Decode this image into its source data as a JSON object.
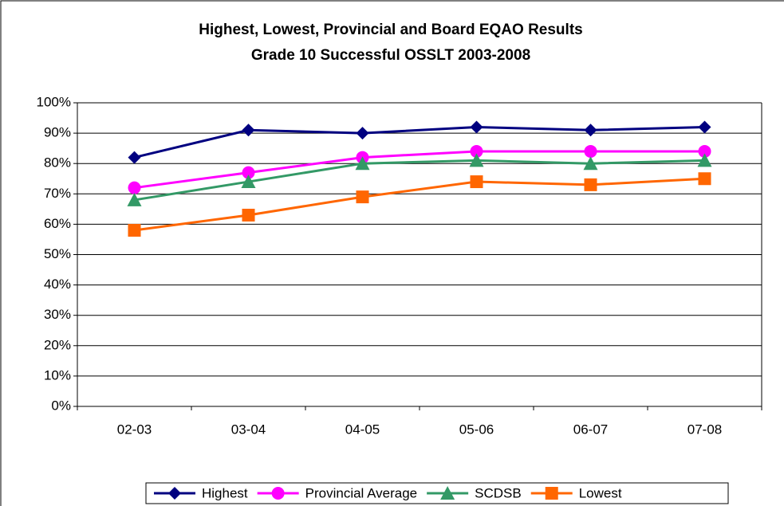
{
  "chart_data": {
    "type": "line",
    "title": "Highest, Lowest, Provincial and Board EQAO Results",
    "subtitle": "Grade 10 Successful OSSLT 2003-2008",
    "categories": [
      "02-03",
      "03-04",
      "04-05",
      "05-06",
      "06-07",
      "07-08"
    ],
    "series": [
      {
        "name": "Highest",
        "color": "#000080",
        "marker": "diamond",
        "values": [
          82,
          91,
          90,
          92,
          91,
          92
        ]
      },
      {
        "name": "Provincial Average",
        "color": "#ff00ff",
        "marker": "circle",
        "values": [
          72,
          77,
          82,
          84,
          84,
          84
        ]
      },
      {
        "name": "SCDSB",
        "color": "#339966",
        "marker": "triangle",
        "values": [
          68,
          74,
          80,
          81,
          80,
          81
        ]
      },
      {
        "name": "Lowest",
        "color": "#ff6600",
        "marker": "square",
        "values": [
          58,
          63,
          69,
          74,
          73,
          75
        ]
      }
    ],
    "ylim": [
      0,
      100
    ],
    "yticks": [
      {
        "value": 0,
        "label": "0%"
      },
      {
        "value": 10,
        "label": "10%"
      },
      {
        "value": 20,
        "label": "20%"
      },
      {
        "value": 30,
        "label": "30%"
      },
      {
        "value": 40,
        "label": "40%"
      },
      {
        "value": 50,
        "label": "50%"
      },
      {
        "value": 60,
        "label": "60%"
      },
      {
        "value": 70,
        "label": "70%"
      },
      {
        "value": 80,
        "label": "80%"
      },
      {
        "value": 90,
        "label": "90%"
      },
      {
        "value": 100,
        "label": "100%"
      }
    ],
    "grid": true,
    "legend": "bottom"
  }
}
